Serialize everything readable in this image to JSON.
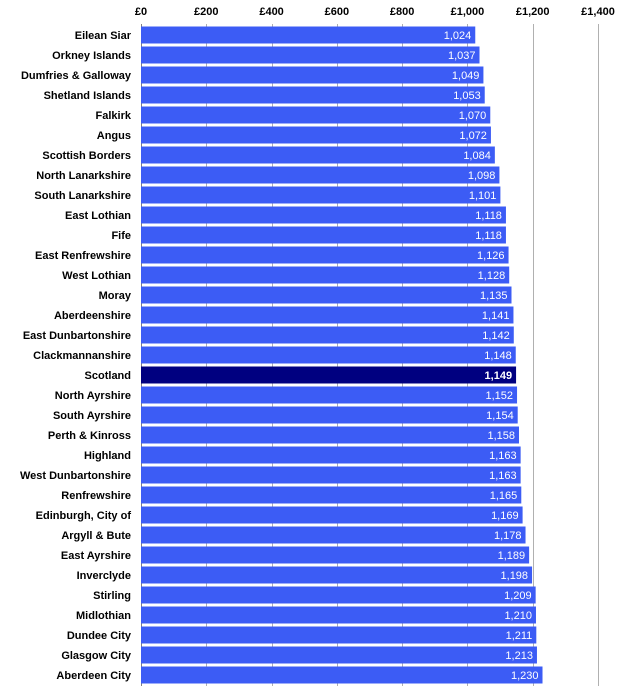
{
  "chart_data": {
    "type": "bar",
    "orientation": "horizontal",
    "title": "",
    "xlabel": "",
    "ylabel": "",
    "xlim": [
      0,
      1400
    ],
    "xticks": [
      0,
      200,
      400,
      600,
      800,
      1000,
      1200,
      1400
    ],
    "xtick_labels": [
      "£0",
      "£200",
      "£400",
      "£600",
      "£800",
      "£1,000",
      "£1,200",
      "£1,400"
    ],
    "xaxis_position": "top",
    "grid": "vertical",
    "legend": "none",
    "colors": {
      "bar": "#3c5cf5",
      "highlight": "#000080",
      "grid": "#b0b0b0",
      "value_text": "#ffffff"
    },
    "highlight_category": "Scotland",
    "categories": [
      "Eilean Siar",
      "Orkney Islands",
      "Dumfries & Galloway",
      "Shetland Islands",
      "Falkirk",
      "Angus",
      "Scottish Borders",
      "North Lanarkshire",
      "South Lanarkshire",
      "East Lothian",
      "Fife",
      "East Renfrewshire",
      "West Lothian",
      "Moray",
      "Aberdeenshire",
      "East Dunbartonshire",
      "Clackmannanshire",
      "Scotland",
      "North Ayrshire",
      "South Ayrshire",
      "Perth & Kinross",
      "Highland",
      "West Dunbartonshire",
      "Renfrewshire",
      "Edinburgh, City of",
      "Argyll & Bute",
      "East Ayrshire",
      "Inverclyde",
      "Stirling",
      "Midlothian",
      "Dundee City",
      "Glasgow City",
      "Aberdeen City"
    ],
    "values": [
      1024,
      1037,
      1049,
      1053,
      1070,
      1072,
      1084,
      1098,
      1101,
      1118,
      1118,
      1126,
      1128,
      1135,
      1141,
      1142,
      1148,
      1149,
      1152,
      1154,
      1158,
      1163,
      1163,
      1165,
      1169,
      1178,
      1189,
      1198,
      1209,
      1210,
      1211,
      1213,
      1230
    ],
    "value_labels": [
      "1,024",
      "1,037",
      "1,049",
      "1,053",
      "1,070",
      "1,072",
      "1,084",
      "1,098",
      "1,101",
      "1,118",
      "1,118",
      "1,126",
      "1,128",
      "1,135",
      "1,141",
      "1,142",
      "1,148",
      "1,149",
      "1,152",
      "1,154",
      "1,158",
      "1,163",
      "1,163",
      "1,165",
      "1,169",
      "1,178",
      "1,189",
      "1,198",
      "1,209",
      "1,210",
      "1,211",
      "1,213",
      "1,230"
    ]
  }
}
